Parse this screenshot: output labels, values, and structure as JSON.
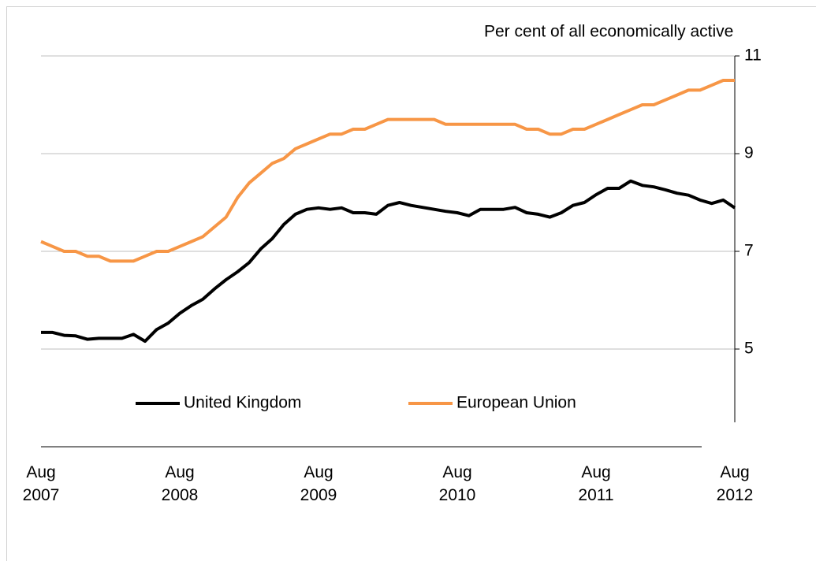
{
  "chart_data": {
    "type": "line",
    "y_axis_label": "Per cent of all economically active",
    "categories": [
      "Aug\n2007",
      null,
      null,
      null,
      null,
      null,
      null,
      null,
      null,
      null,
      null,
      null,
      "Aug\n2008",
      null,
      null,
      null,
      null,
      null,
      null,
      null,
      null,
      null,
      null,
      null,
      "Aug\n2009",
      null,
      null,
      null,
      null,
      null,
      null,
      null,
      null,
      null,
      null,
      null,
      "Aug\n2010",
      null,
      null,
      null,
      null,
      null,
      null,
      null,
      null,
      null,
      null,
      null,
      "Aug\n2011",
      null,
      null,
      null,
      null,
      null,
      null,
      null,
      null,
      null,
      null,
      null,
      "Aug\n2012"
    ],
    "series": [
      {
        "name": "United Kingdom",
        "color": "#000000",
        "values": [
          5.34,
          5.34,
          5.28,
          5.27,
          5.2,
          5.22,
          5.22,
          5.22,
          5.3,
          5.16,
          5.4,
          5.53,
          5.73,
          5.89,
          6.02,
          6.23,
          6.42,
          6.58,
          6.77,
          7.05,
          7.26,
          7.55,
          7.76,
          7.86,
          7.89,
          7.86,
          7.89,
          7.79,
          7.79,
          7.76,
          7.94,
          8.0,
          7.94,
          7.9,
          7.86,
          7.82,
          7.79,
          7.73,
          7.86,
          7.86,
          7.86,
          7.9,
          7.79,
          7.76,
          7.7,
          7.79,
          7.94,
          8.0,
          8.16,
          8.29,
          8.29,
          8.44,
          8.35,
          8.32,
          8.26,
          8.19,
          8.15,
          8.05,
          7.98,
          8.05,
          7.89
        ]
      },
      {
        "name": "European Union",
        "color": "#f79646",
        "values": [
          7.2,
          7.1,
          7.0,
          7.0,
          6.9,
          6.9,
          6.8,
          6.8,
          6.8,
          6.9,
          7.0,
          7.0,
          7.1,
          7.2,
          7.3,
          7.5,
          7.7,
          8.1,
          8.4,
          8.6,
          8.8,
          8.9,
          9.1,
          9.2,
          9.3,
          9.4,
          9.4,
          9.5,
          9.5,
          9.6,
          9.7,
          9.7,
          9.7,
          9.7,
          9.7,
          9.6,
          9.6,
          9.6,
          9.6,
          9.6,
          9.6,
          9.6,
          9.5,
          9.5,
          9.4,
          9.4,
          9.5,
          9.5,
          9.6,
          9.7,
          9.8,
          9.9,
          10.0,
          10.0,
          10.1,
          10.2,
          10.3,
          10.3,
          10.4,
          10.5,
          10.5
        ]
      }
    ],
    "ylim": [
      3.5,
      11
    ],
    "yticks": [
      5,
      7,
      9,
      11
    ],
    "grid": true,
    "legend": "lower center"
  }
}
